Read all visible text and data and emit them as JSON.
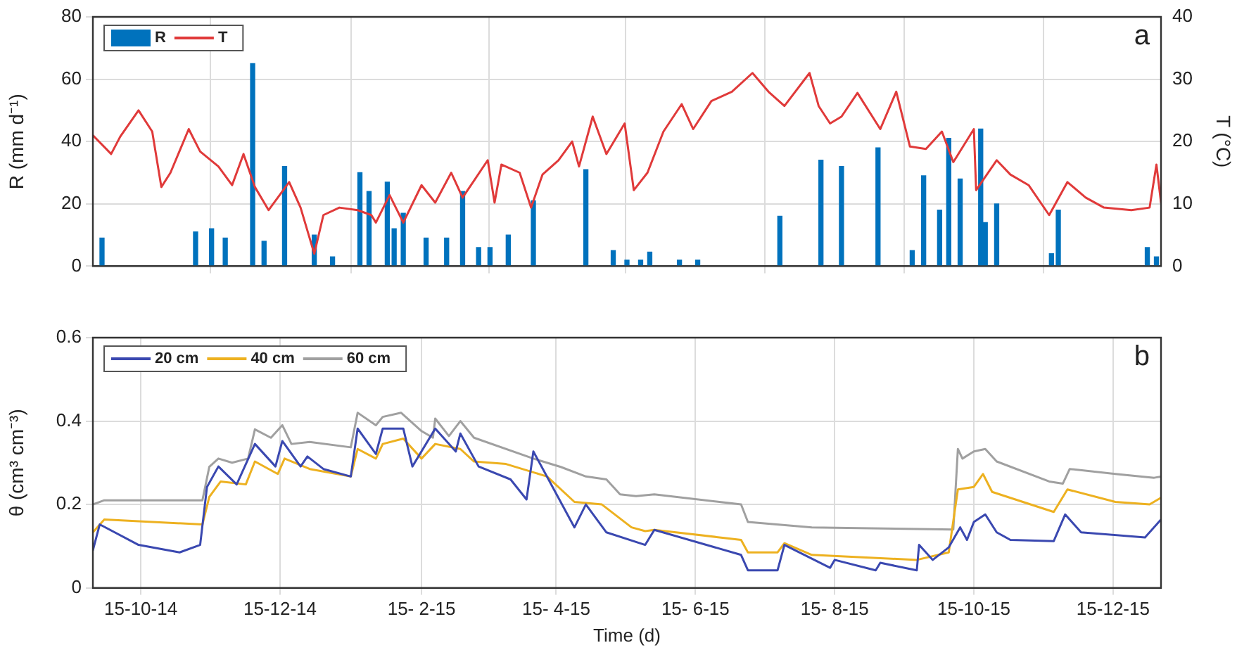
{
  "chart_data": [
    {
      "type": "bar",
      "ylabel": "R (mm d⁻¹)",
      "y2label": "T (°C)",
      "annotations": [
        "a"
      ],
      "xlim": [
        "2014-09-24",
        "2016-01-05"
      ],
      "xticks": [
        {
          "value": "2014-10-15",
          "label": null
        },
        {
          "value": "2014-12-15",
          "label": null
        },
        {
          "value": "2015-02-15",
          "label": null
        },
        {
          "value": "2015-04-15",
          "label": null
        },
        {
          "value": "2015-06-15",
          "label": null
        },
        {
          "value": "2015-08-15",
          "label": null
        },
        {
          "value": "2015-10-15",
          "label": null
        },
        {
          "value": "2015-12-15",
          "label": null
        }
      ],
      "ylim": [
        0,
        80
      ],
      "yticks": [
        0,
        20,
        40,
        60,
        80
      ],
      "y2lim": [
        0,
        40
      ],
      "y2ticks": [
        0,
        10,
        20,
        30,
        40
      ],
      "tick_labels": "y",
      "grid": true,
      "legend": "top left",
      "marker": "none",
      "series": [
        {
          "name": "R",
          "type": "bar",
          "color": "#0072bd",
          "x": [
            "2014-09-28",
            "2014-11-08",
            "2014-11-15",
            "2014-11-21",
            "2014-12-03",
            "2014-12-08",
            "2014-12-17",
            "2014-12-30",
            "2015-01-07",
            "2015-01-19",
            "2015-01-23",
            "2015-01-31",
            "2015-02-03",
            "2015-02-07",
            "2015-02-17",
            "2015-02-26",
            "2015-03-05",
            "2015-03-12",
            "2015-03-17",
            "2015-03-25",
            "2015-04-05",
            "2015-04-28",
            "2015-05-10",
            "2015-05-16",
            "2015-05-22",
            "2015-05-26",
            "2015-06-08",
            "2015-06-16",
            "2015-07-22",
            "2015-08-09",
            "2015-08-18",
            "2015-09-03",
            "2015-09-18",
            "2015-09-23",
            "2015-09-30",
            "2015-10-04",
            "2015-10-09",
            "2015-10-18",
            "2015-10-20",
            "2015-10-25",
            "2015-11-18",
            "2015-11-21",
            "2015-12-30",
            "2016-01-03"
          ],
          "values": [
            9,
            11,
            12,
            9,
            65,
            8,
            32,
            10,
            3,
            30,
            24,
            27,
            12,
            17,
            9,
            9,
            24,
            6,
            6,
            10,
            21,
            31,
            5,
            2,
            2,
            4.5,
            2,
            2,
            16,
            34,
            32,
            38,
            5,
            29,
            18,
            41,
            28,
            44,
            14,
            20,
            4,
            18,
            6,
            3
          ]
        },
        {
          "name": "T",
          "type": "line",
          "axis": "y2",
          "color": "#e03a3a",
          "x": [
            "2014-09-24",
            "2014-10-02",
            "2014-10-06",
            "2014-10-14",
            "2014-10-20",
            "2014-10-24",
            "2014-10-28",
            "2014-11-05",
            "2014-11-10",
            "2014-11-18",
            "2014-11-24",
            "2014-11-29",
            "2014-12-04",
            "2014-12-10",
            "2014-12-19",
            "2014-12-24",
            "2014-12-30",
            "2015-01-03",
            "2015-01-10",
            "2015-01-18",
            "2015-01-24",
            "2015-01-26",
            "2015-02-01",
            "2015-02-07",
            "2015-02-15",
            "2015-02-21",
            "2015-02-28",
            "2015-03-05",
            "2015-03-16",
            "2015-03-19",
            "2015-03-22",
            "2015-03-30",
            "2015-04-04",
            "2015-04-09",
            "2015-04-16",
            "2015-04-22",
            "2015-04-25",
            "2015-05-01",
            "2015-05-07",
            "2015-05-15",
            "2015-05-19",
            "2015-05-25",
            "2015-06-01",
            "2015-06-09",
            "2015-06-14",
            "2015-06-22",
            "2015-07-01",
            "2015-07-10",
            "2015-07-17",
            "2015-07-24",
            "2015-08-04",
            "2015-08-08",
            "2015-08-13",
            "2015-08-18",
            "2015-08-25",
            "2015-09-04",
            "2015-09-11",
            "2015-09-17",
            "2015-09-24",
            "2015-10-01",
            "2015-10-06",
            "2015-10-15",
            "2015-10-16",
            "2015-10-25",
            "2015-10-31",
            "2015-11-08",
            "2015-11-17",
            "2015-11-25",
            "2015-12-03",
            "2015-12-11",
            "2015-12-23",
            "2015-12-31",
            "2016-01-03",
            "2016-01-05"
          ],
          "values": [
            21,
            18,
            20.8,
            25,
            21.6,
            12.7,
            15,
            22,
            18.4,
            16,
            13,
            18,
            12.7,
            9,
            13.5,
            9.4,
            2,
            8.2,
            9.4,
            9,
            8.2,
            7,
            11.4,
            7,
            13,
            10.2,
            15,
            11,
            17,
            10.2,
            16.3,
            15,
            9.4,
            14.7,
            17,
            20,
            16,
            24,
            18,
            22.9,
            12.2,
            15,
            21.6,
            26,
            22,
            26.5,
            28,
            31,
            28,
            25.7,
            31,
            25.7,
            22.9,
            24,
            27.8,
            22,
            28,
            19.2,
            18.8,
            21.6,
            16.7,
            22,
            12.2,
            17,
            14.7,
            13,
            8.2,
            13.5,
            11,
            9.4,
            9,
            9.4,
            16.3,
            10.2
          ]
        }
      ]
    },
    {
      "type": "line",
      "ylabel": "θ (cm³ cm⁻³)",
      "xlabel": "Time (d)",
      "annotations": [
        "b"
      ],
      "xlim": [
        "2014-09-24",
        "2016-01-05"
      ],
      "xticks": [
        {
          "value": "2014-10-15",
          "label": "15-10-14"
        },
        {
          "value": "2014-12-15",
          "label": "15-12-14"
        },
        {
          "value": "2015-02-15",
          "label": "15- 2-15"
        },
        {
          "value": "2015-04-15",
          "label": "15- 4-15"
        },
        {
          "value": "2015-06-15",
          "label": "15- 6-15"
        },
        {
          "value": "2015-08-15",
          "label": "15- 8-15"
        },
        {
          "value": "2015-10-15",
          "label": "15-10-15"
        },
        {
          "value": "2015-12-15",
          "label": "15-12-15"
        }
      ],
      "ylim": [
        0,
        0.6
      ],
      "yticks": [
        0,
        0.2,
        0.4,
        0.6
      ],
      "grid": true,
      "legend": "top left",
      "marker": "none",
      "series": [
        {
          "name": "20 cm",
          "color": "#3a48b0",
          "x": [
            "2014-09-24",
            "2014-09-27",
            "2014-10-14",
            "2014-11-01",
            "2014-11-10",
            "2014-11-13",
            "2014-11-18",
            "2014-11-26",
            "2014-12-04",
            "2014-12-13",
            "2014-12-16",
            "2014-12-24",
            "2014-12-27",
            "2015-01-03",
            "2015-01-15",
            "2015-01-18",
            "2015-01-26",
            "2015-01-29",
            "2015-02-07",
            "2015-02-11",
            "2015-02-21",
            "2015-03-02",
            "2015-03-04",
            "2015-03-12",
            "2015-03-26",
            "2015-04-02",
            "2015-04-05",
            "2015-04-23",
            "2015-04-28",
            "2015-05-07",
            "2015-05-24",
            "2015-05-28",
            "2015-07-05",
            "2015-07-08",
            "2015-07-21",
            "2015-07-24",
            "2015-08-13",
            "2015-08-15",
            "2015-09-02",
            "2015-09-04",
            "2015-09-20",
            "2015-09-21",
            "2015-09-27",
            "2015-10-04",
            "2015-10-09",
            "2015-10-12",
            "2015-10-15",
            "2015-10-20",
            "2015-10-25",
            "2015-10-31",
            "2015-11-19",
            "2015-11-24",
            "2015-12-01",
            "2015-12-29",
            "2016-01-05"
          ],
          "values": [
            0.09,
            0.152,
            0.103,
            0.085,
            0.103,
            0.242,
            0.291,
            0.248,
            0.345,
            0.291,
            0.352,
            0.291,
            0.315,
            0.285,
            0.267,
            0.382,
            0.321,
            0.382,
            0.382,
            0.291,
            0.382,
            0.327,
            0.37,
            0.291,
            0.26,
            0.212,
            0.327,
            0.145,
            0.2,
            0.133,
            0.103,
            0.139,
            0.079,
            0.042,
            0.042,
            0.103,
            0.048,
            0.067,
            0.042,
            0.06,
            0.042,
            0.103,
            0.067,
            0.097,
            0.145,
            0.115,
            0.158,
            0.176,
            0.133,
            0.115,
            0.112,
            0.176,
            0.133,
            0.121,
            0.164
          ]
        },
        {
          "name": "40 cm",
          "color": "#edb120",
          "x": [
            "2014-09-24",
            "2014-09-29",
            "2014-11-11",
            "2014-11-14",
            "2014-11-19",
            "2014-11-30",
            "2014-12-04",
            "2014-12-14",
            "2014-12-17",
            "2014-12-28",
            "2015-01-15",
            "2015-01-18",
            "2015-01-26",
            "2015-01-29",
            "2015-02-07",
            "2015-02-15",
            "2015-02-21",
            "2015-03-04",
            "2015-03-10",
            "2015-03-24",
            "2015-04-11",
            "2015-04-23",
            "2015-05-05",
            "2015-05-18",
            "2015-05-24",
            "2015-05-28",
            "2015-07-05",
            "2015-07-08",
            "2015-07-21",
            "2015-07-24",
            "2015-08-05",
            "2015-09-20",
            "2015-10-04",
            "2015-10-08",
            "2015-10-15",
            "2015-10-19",
            "2015-10-23",
            "2015-11-19",
            "2015-11-25",
            "2015-12-16",
            "2015-12-31",
            "2016-01-05"
          ],
          "values": [
            0.133,
            0.164,
            0.152,
            0.218,
            0.255,
            0.248,
            0.303,
            0.273,
            0.31,
            0.285,
            0.267,
            0.333,
            0.31,
            0.345,
            0.358,
            0.31,
            0.345,
            0.333,
            0.303,
            0.297,
            0.267,
            0.206,
            0.2,
            0.145,
            0.136,
            0.139,
            0.115,
            0.085,
            0.085,
            0.107,
            0.079,
            0.067,
            0.085,
            0.236,
            0.242,
            0.273,
            0.23,
            0.182,
            0.236,
            0.206,
            0.2,
            0.216
          ]
        },
        {
          "name": "60 cm",
          "color": "#a0a0a0",
          "x": [
            "2014-09-24",
            "2014-09-29",
            "2014-11-11",
            "2014-11-14",
            "2014-11-18",
            "2014-11-24",
            "2014-12-01",
            "2014-12-04",
            "2014-12-11",
            "2014-12-16",
            "2014-12-20",
            "2014-12-28",
            "2015-01-15",
            "2015-01-18",
            "2015-01-26",
            "2015-01-29",
            "2015-02-06",
            "2015-02-15",
            "2015-02-20",
            "2015-02-21",
            "2015-02-27",
            "2015-03-04",
            "2015-03-10",
            "2015-04-05",
            "2015-04-17",
            "2015-04-28",
            "2015-05-07",
            "2015-05-13",
            "2015-05-20",
            "2015-05-28",
            "2015-07-05",
            "2015-07-08",
            "2015-08-05",
            "2015-10-06",
            "2015-10-08",
            "2015-10-10",
            "2015-10-15",
            "2015-10-20",
            "2015-10-25",
            "2015-11-17",
            "2015-11-23",
            "2015-11-26",
            "2015-12-16",
            "2016-01-02",
            "2016-01-05"
          ],
          "values": [
            0.2,
            0.21,
            0.21,
            0.29,
            0.31,
            0.3,
            0.31,
            0.38,
            0.36,
            0.39,
            0.345,
            0.35,
            0.337,
            0.42,
            0.39,
            0.41,
            0.42,
            0.376,
            0.36,
            0.406,
            0.364,
            0.4,
            0.36,
            0.31,
            0.29,
            0.267,
            0.26,
            0.224,
            0.22,
            0.224,
            0.2,
            0.158,
            0.145,
            0.14,
            0.333,
            0.31,
            0.327,
            0.333,
            0.303,
            0.255,
            0.25,
            0.285,
            0.273,
            0.264,
            0.267
          ]
        }
      ]
    }
  ]
}
